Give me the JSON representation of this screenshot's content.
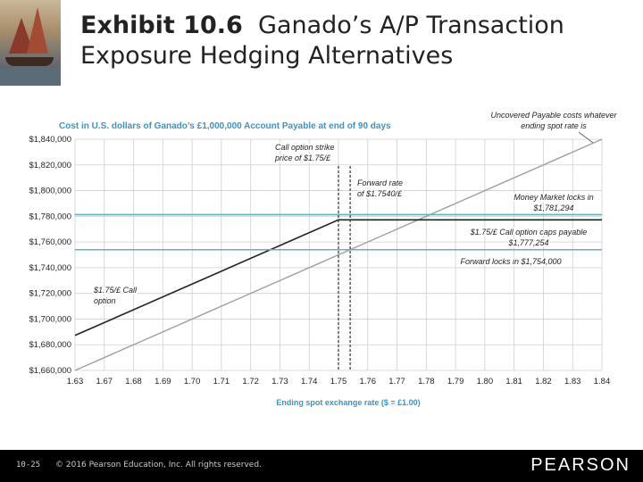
{
  "slide": {
    "title_bold": "Exhibit 10.6",
    "title_rest_line1": "Ganado’s A/P Transaction",
    "title_line2": "Exposure Hedging Alternatives"
  },
  "footer": {
    "page_number": "10-25",
    "copyright": "© 2016 Pearson Education, Inc. All rights reserved.",
    "brand": "PEARSON"
  },
  "colors": {
    "accent_blue": "#3b93c9",
    "teal_line": "#5fb4c4",
    "call_line": "#222222",
    "uncovered_line": "#a0a0a0",
    "grid": "#cfcfcf"
  },
  "chart_data": {
    "type": "line",
    "title": "Cost in U.S. dollars of Ganado’s £1,000,000 Account Payable at end of 90 days",
    "xlabel": "Ending spot exchange rate ($ = £1.00)",
    "ylabel": "",
    "x_ticks": [
      "1.63",
      "1.67",
      "1.68",
      "1.69",
      "1.70",
      "1.71",
      "1.72",
      "1.73",
      "1.74",
      "1.75",
      "1.76",
      "1.77",
      "1.78",
      "1.79",
      "1.80",
      "1.81",
      "1.82",
      "1.83",
      "1.84"
    ],
    "y_ticks": [
      "$1,840,000",
      "$1,820,000",
      "$1,800,000",
      "$1,780,000",
      "$1,760,000",
      "$1,740,000",
      "$1,720,000",
      "$1,700,000",
      "$1,680,000",
      "$1,660,000"
    ],
    "ylim": [
      1660000,
      1840000
    ],
    "grid": true,
    "series": [
      {
        "key": "uncovered",
        "x": [
          1.66,
          1.84
        ],
        "y": [
          1660000,
          1840000
        ]
      },
      {
        "key": "call",
        "x": [
          1.66,
          1.75,
          1.84
        ],
        "y": [
          1687254,
          1777254,
          1777254
        ]
      },
      {
        "key": "money_market",
        "x": [
          1.66,
          1.84
        ],
        "y": [
          1781294,
          1781294
        ]
      },
      {
        "key": "forward",
        "x": [
          1.66,
          1.84
        ],
        "y": [
          1754000,
          1754000
        ]
      }
    ],
    "vertical_lines": [
      {
        "key": "strike",
        "x": 1.75
      },
      {
        "key": "forward_rate",
        "x": 1.754
      }
    ],
    "annotations": [
      {
        "key": "uncovered",
        "lines": [
          "Uncovered Payable costs whatever",
          "ending spot rate is"
        ]
      },
      {
        "key": "strike",
        "lines": [
          "Call option strike",
          "price of $1.75/£"
        ]
      },
      {
        "key": "forward_rate",
        "lines": [
          "Forward rate",
          "of $1.7540/£"
        ]
      },
      {
        "key": "money_market",
        "lines": [
          "Money Market locks in",
          "$1,781,294"
        ]
      },
      {
        "key": "call_cap",
        "lines": [
          "$1.75/£ Call option caps payable",
          "$1,777,254"
        ]
      },
      {
        "key": "forward",
        "lines": [
          "Forward locks in $1,754,000"
        ]
      },
      {
        "key": "call",
        "lines": [
          "$1.75/£ Call",
          "option"
        ]
      }
    ]
  }
}
